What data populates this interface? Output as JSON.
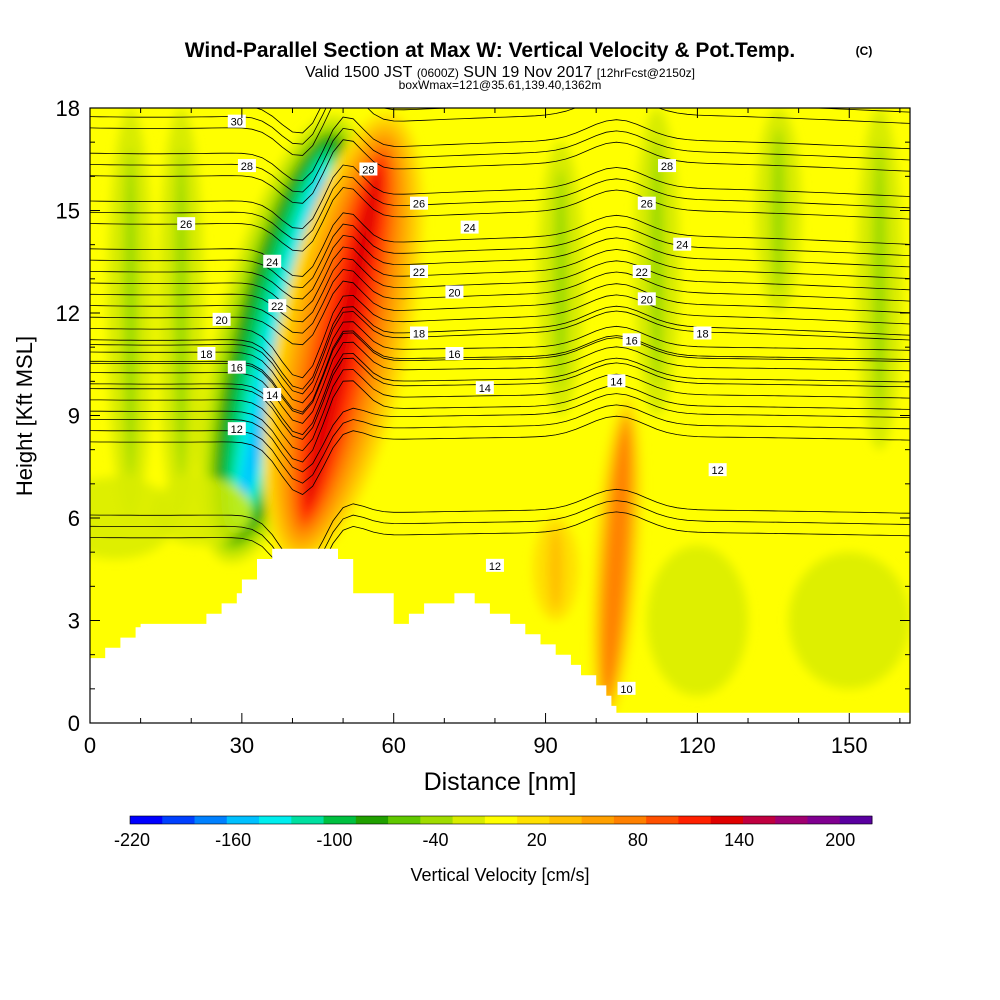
{
  "chart_data": {
    "type": "heatmap",
    "title": "Wind-Parallel Section at Max W: Vertical Velocity & Pot.Temp.",
    "title_mark": "(C)",
    "subtitle_parts": [
      "Valid 1500 JST",
      "(0600Z)",
      "SUN 19 Nov 2017",
      "[12hrFcst@2150z]"
    ],
    "subtitle2": "boxWmax=121@35.61,139.40,1362m",
    "xlabel": "Distance [nm]",
    "ylabel": "Height [Kft MSL]",
    "xlim": [
      0,
      162
    ],
    "ylim": [
      0,
      18
    ],
    "xticks": [
      0,
      30,
      60,
      90,
      120,
      150
    ],
    "yticks": [
      0,
      3,
      6,
      9,
      12,
      15,
      18
    ],
    "colorbar": {
      "label": "Vertical Velocity [cm/s]",
      "min": -220,
      "max": 220,
      "tick_values": [
        -220,
        -160,
        -100,
        -40,
        20,
        80,
        140,
        200
      ],
      "colors": [
        "#0000ff",
        "#0040ff",
        "#0080ff",
        "#00c0ff",
        "#00eeee",
        "#00e0a0",
        "#00c040",
        "#20a000",
        "#60c800",
        "#a0dc00",
        "#d8ec00",
        "#ffff00",
        "#ffe000",
        "#ffc000",
        "#ffa000",
        "#ff8000",
        "#ff5000",
        "#ff2000",
        "#e00000",
        "#c00040",
        "#a00070",
        "#800090",
        "#5a00a0"
      ]
    },
    "vertical_velocity_features": [
      {
        "kind": "downdraft",
        "x": 38,
        "y_range": [
          4.5,
          18
        ],
        "peak_cm_s": -160
      },
      {
        "kind": "updraft",
        "x": 50,
        "y_range": [
          4.5,
          18
        ],
        "peak_cm_s": 140
      },
      {
        "kind": "updraft",
        "x": 104,
        "y_range": [
          0,
          9.5
        ],
        "peak_cm_s": 80
      },
      {
        "kind": "updraft",
        "x": 92,
        "y_range": [
          3,
          6
        ],
        "peak_cm_s": 30
      },
      {
        "kind": "weak downdraft",
        "x": 8,
        "y_range": [
          6,
          18
        ],
        "peak_cm_s": -40
      },
      {
        "kind": "weak downdraft",
        "x": 18,
        "y_range": [
          6,
          18
        ],
        "peak_cm_s": -40
      },
      {
        "kind": "weak downdraft",
        "x": 93,
        "y_range": [
          9,
          17
        ],
        "peak_cm_s": -40
      },
      {
        "kind": "weak downdraft",
        "x": 112,
        "y_range": [
          9,
          18
        ],
        "peak_cm_s": -40
      },
      {
        "kind": "weak downdraft",
        "x": 136,
        "y_range": [
          12,
          18
        ],
        "peak_cm_s": -30
      },
      {
        "kind": "weak downdraft",
        "x": 156,
        "y_range": [
          8,
          18
        ],
        "peak_cm_s": -40
      }
    ],
    "potential_temperature_contours": [
      {
        "value": 30,
        "height_kft_at_x0": 17.6
      },
      {
        "value": 28,
        "height_kft_at_x0": 16.2
      },
      {
        "value": 26,
        "height_kft_at_x0": 14.8
      },
      {
        "value": 24,
        "height_kft_at_x0": 13.4
      },
      {
        "value": 22,
        "height_kft_at_x0": 12.4
      },
      {
        "value": 20,
        "height_kft_at_x0": 11.4
      },
      {
        "value": 18,
        "height_kft_at_x0": 10.6
      },
      {
        "value": 16,
        "height_kft_at_x0": 10.0
      },
      {
        "value": 14,
        "height_kft_at_x0": 9.2
      },
      {
        "value": 12,
        "height_kft_at_x0": 8.3
      },
      {
        "value": 10,
        "height_kft_at_x0": 5.5
      }
    ],
    "contour_labels": [
      {
        "text": "30",
        "x": 29,
        "y": 17.6
      },
      {
        "text": "28",
        "x": 31,
        "y": 16.3
      },
      {
        "text": "26",
        "x": 19,
        "y": 14.6
      },
      {
        "text": "24",
        "x": 36,
        "y": 13.5
      },
      {
        "text": "22",
        "x": 37,
        "y": 12.2
      },
      {
        "text": "20",
        "x": 26,
        "y": 11.8
      },
      {
        "text": "18",
        "x": 23,
        "y": 10.8
      },
      {
        "text": "16",
        "x": 29,
        "y": 10.4
      },
      {
        "text": "14",
        "x": 36,
        "y": 9.6
      },
      {
        "text": "12",
        "x": 29,
        "y": 8.6
      },
      {
        "text": "28",
        "x": 55,
        "y": 16.2
      },
      {
        "text": "26",
        "x": 65,
        "y": 15.2
      },
      {
        "text": "24",
        "x": 75,
        "y": 14.5
      },
      {
        "text": "22",
        "x": 65,
        "y": 13.2
      },
      {
        "text": "20",
        "x": 72,
        "y": 12.6
      },
      {
        "text": "18",
        "x": 65,
        "y": 11.4
      },
      {
        "text": "16",
        "x": 72,
        "y": 10.8
      },
      {
        "text": "14",
        "x": 78,
        "y": 9.8
      },
      {
        "text": "28",
        "x": 114,
        "y": 16.3
      },
      {
        "text": "26",
        "x": 110,
        "y": 15.2
      },
      {
        "text": "24",
        "x": 117,
        "y": 14.0
      },
      {
        "text": "22",
        "x": 109,
        "y": 13.2
      },
      {
        "text": "20",
        "x": 110,
        "y": 12.4
      },
      {
        "text": "18",
        "x": 121,
        "y": 11.4
      },
      {
        "text": "16",
        "x": 107,
        "y": 11.2
      },
      {
        "text": "14",
        "x": 104,
        "y": 10.0
      },
      {
        "text": "12",
        "x": 124,
        "y": 7.4
      },
      {
        "text": "12",
        "x": 80,
        "y": 4.6
      },
      {
        "text": "10",
        "x": 106,
        "y": 1.0
      }
    ],
    "terrain": {
      "fill": "#ffffff",
      "profile_x": [
        0,
        3,
        6,
        9,
        10,
        20,
        23,
        26,
        29,
        30,
        33,
        36,
        46,
        49,
        52,
        60,
        63,
        66,
        72,
        76,
        79,
        83,
        86,
        89,
        92,
        95,
        97,
        100,
        102,
        103,
        104,
        162
      ],
      "profile_y": [
        1.9,
        2.2,
        2.5,
        2.8,
        2.9,
        2.9,
        3.2,
        3.5,
        3.8,
        4.2,
        4.8,
        5.1,
        5.1,
        4.8,
        3.8,
        2.9,
        3.2,
        3.5,
        3.8,
        3.5,
        3.2,
        2.9,
        2.6,
        2.3,
        2.0,
        1.7,
        1.4,
        1.1,
        0.8,
        0.5,
        0.3,
        0.3
      ]
    }
  }
}
